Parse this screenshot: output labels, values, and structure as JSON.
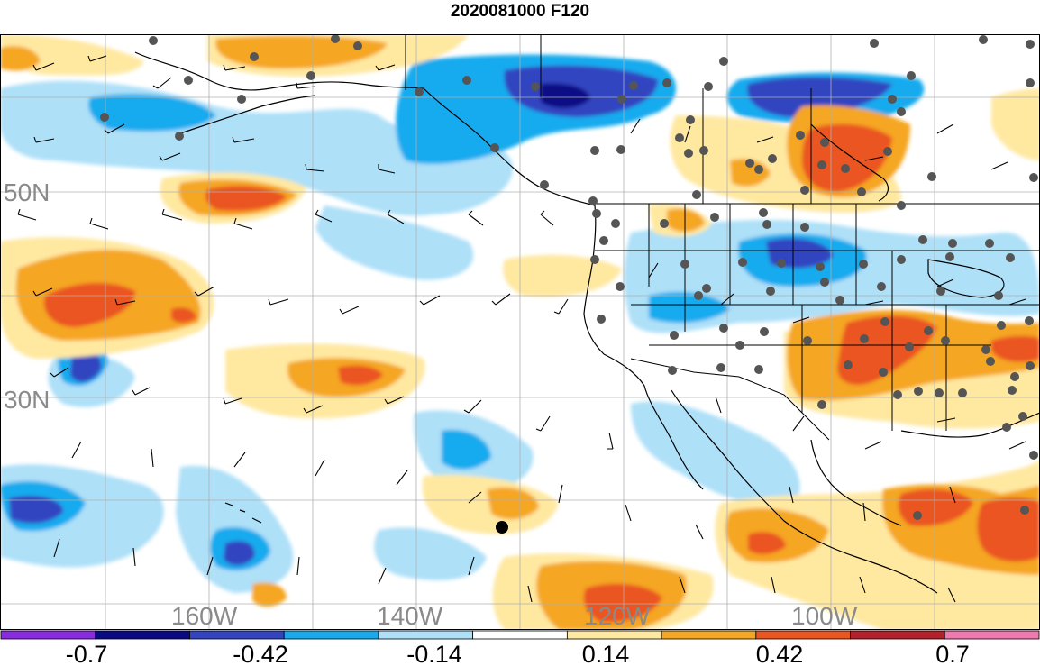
{
  "title": "2020081000 F120",
  "map": {
    "longitude_labels": [
      "160W",
      "140W",
      "120W",
      "100W"
    ],
    "latitude_labels": [
      "50N",
      "30N"
    ]
  },
  "colorbar": {
    "tick_labels": [
      "-0.7",
      "-0.42",
      "-0.14",
      "0.14",
      "0.42",
      "0.7"
    ],
    "colors": [
      "#8a2be2",
      "#0a0a85",
      "#3344c0",
      "#19aaee",
      "#aee0f8",
      "#ffffff",
      "#ffe8a0",
      "#f5a623",
      "#ea5520",
      "#b5202a",
      "#f07ab0"
    ]
  }
}
